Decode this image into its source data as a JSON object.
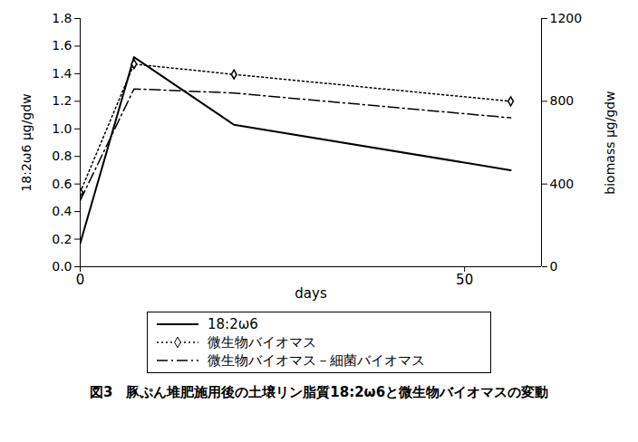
{
  "chart_data": {
    "type": "line",
    "title": "図3　豚ぷん堆肥施用後の土壌リン脂質18:2ω6と微生物バイオマスの変動",
    "x_label": "days",
    "y_label": "18:2ω6 μg/gdw",
    "y2_label": "biomass μg/gdw",
    "x": [
      0,
      7,
      20,
      56
    ],
    "xlim": [
      0,
      60
    ],
    "xticks": [
      0,
      50
    ],
    "ylim": [
      0,
      1.8
    ],
    "yticks": [
      {
        "value": 0,
        "label": "0.0"
      },
      0.2,
      0.4,
      0.6,
      0.8,
      {
        "value": 1,
        "label": "1.0"
      },
      1.2,
      1.4,
      1.6,
      1.8
    ],
    "y2lim": [
      0,
      1200
    ],
    "y2ticks": [
      0,
      400,
      800,
      1200
    ],
    "grid": false,
    "legend": "bottom",
    "series": [
      {
        "name": "18:2ω6",
        "color": "#000000",
        "line_style": "solid",
        "values": [
          0.17,
          1.52,
          1.03,
          0.7
        ]
      },
      {
        "name": "微生物バイオマス",
        "color": "#000000",
        "line_style": "dotted",
        "marker": "diamond",
        "axis": "y2",
        "values": [
          360,
          980,
          930,
          800
        ]
      },
      {
        "name": "微生物バイオマス－細菌バイオマス",
        "color": "#000000",
        "line_style": "dashdot",
        "axis": "y2",
        "values": [
          320,
          860,
          840,
          720
        ]
      }
    ]
  }
}
